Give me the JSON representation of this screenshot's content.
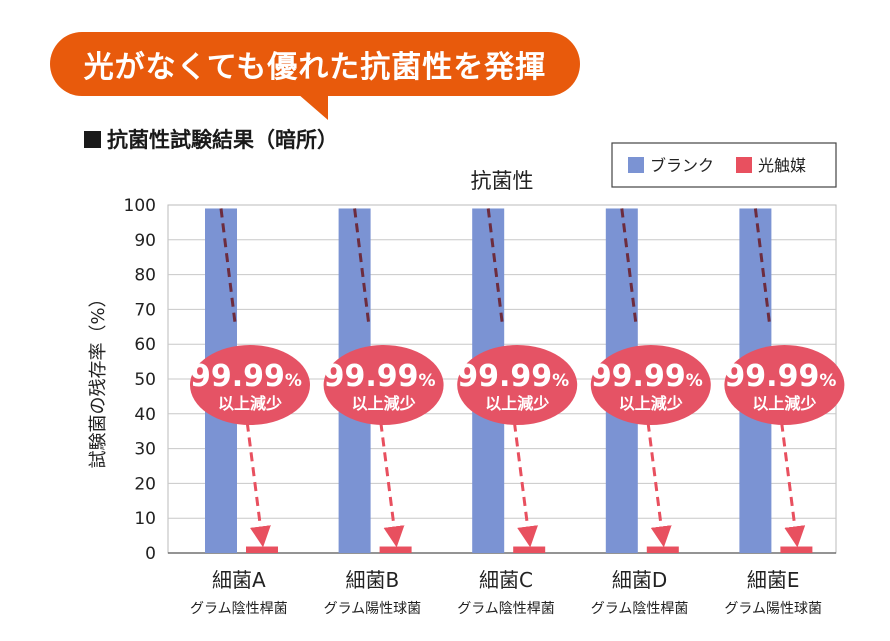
{
  "banner": {
    "text": "光がなくても優れた抗菌性を発揮"
  },
  "subtitle": {
    "text": "抗菌性試験結果（暗所）"
  },
  "colors": {
    "banner": "#e85a0c",
    "blank": "#7b93d3",
    "photocatalyst": "#e8505f",
    "badge": "#e55365",
    "arrow": "#e8505f",
    "arrow_dark": "#6d2c3e"
  },
  "chart_data": {
    "type": "bar",
    "title": "抗菌性",
    "ylabel": "試験菌の残存率（%）",
    "xlabel": "",
    "ylim": [
      0,
      100
    ],
    "yticks": [
      0,
      10,
      20,
      30,
      40,
      50,
      60,
      70,
      80,
      90,
      100
    ],
    "grid": true,
    "legend_position": "top-right",
    "categories": [
      "細菌A",
      "細菌B",
      "細菌C",
      "細菌D",
      "細菌E"
    ],
    "subcategories": [
      "グラム陰性桿菌",
      "グラム陽性球菌",
      "グラム陰性桿菌",
      "グラム陰性桿菌",
      "グラム陽性球菌"
    ],
    "series": [
      {
        "name": "ブランク",
        "values": [
          99,
          99,
          99,
          99,
          99
        ]
      },
      {
        "name": "光触媒",
        "values": [
          1,
          1,
          1,
          1,
          1
        ]
      }
    ],
    "annotations": [
      {
        "value": "99.99",
        "unit": "%",
        "sub": "以上減少"
      },
      {
        "value": "99.99",
        "unit": "%",
        "sub": "以上減少"
      },
      {
        "value": "99.99",
        "unit": "%",
        "sub": "以上減少"
      },
      {
        "value": "99.99",
        "unit": "%",
        "sub": "以上減少"
      },
      {
        "value": "99.99",
        "unit": "%",
        "sub": "以上減少"
      }
    ]
  }
}
